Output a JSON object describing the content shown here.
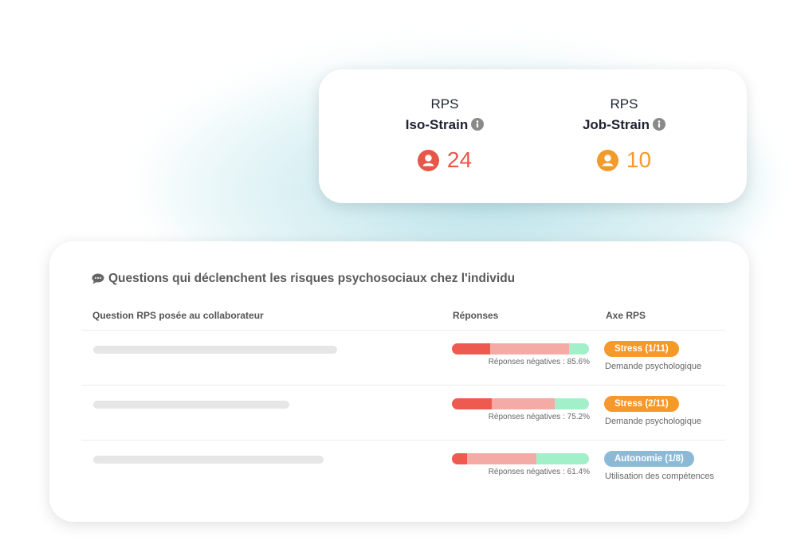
{
  "summary": [
    {
      "label": "RPS",
      "title": "Iso-Strain",
      "value": 24,
      "color": "#e8564a"
    },
    {
      "label": "RPS",
      "title": "Job-Strain",
      "value": 10,
      "color": "#f39a2b"
    }
  ],
  "questions": {
    "title": "Questions qui déclenchent les risques psychosociaux chez l'individu",
    "headers": [
      "Question RPS posée au collaborateur",
      "Réponses",
      "Axe RPS"
    ],
    "segment_colors": [
      "#ee5a4f",
      "#f4aba6",
      "#a2f0ca"
    ],
    "rows": [
      {
        "segments": [
          28,
          57.6,
          14.4
        ],
        "negative_label": "Réponses négatives : 85.6%",
        "tag": "Stress (1/11)",
        "tag_color": "#f7982a",
        "axis": "Demande psychologique"
      },
      {
        "segments": [
          29,
          46.2,
          24.8
        ],
        "negative_label": "Réponses négatives : 75.2%",
        "tag": "Stress (2/11)",
        "tag_color": "#f7982a",
        "axis": "Demande psychologique"
      },
      {
        "segments": [
          11,
          50.4,
          38.6
        ],
        "negative_label": "Réponses négatives : 61.4%",
        "tag": "Autonomie (1/8)",
        "tag_color": "#8cbad6",
        "axis": "Utilisation des compétences"
      }
    ]
  }
}
